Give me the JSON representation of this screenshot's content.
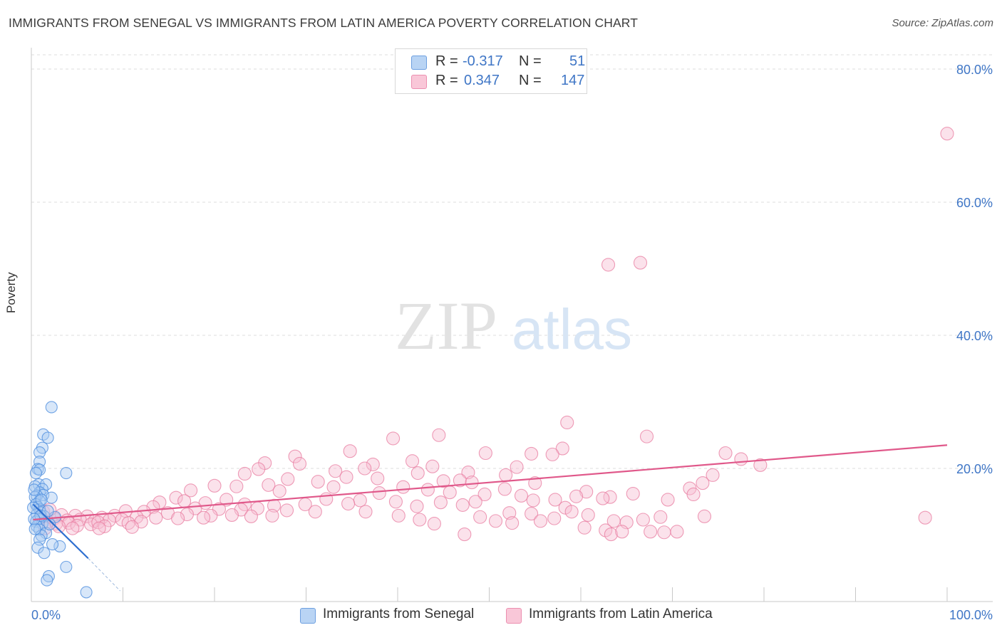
{
  "title": "IMMIGRANTS FROM SENEGAL VS IMMIGRANTS FROM LATIN AMERICA POVERTY CORRELATION CHART",
  "source": "Source: ZipAtlas.com",
  "watermark": {
    "zip": "ZIP",
    "atlas": "atlas"
  },
  "legend": {
    "r_label": "R =",
    "n_label": "N =",
    "rows": [
      {
        "r": "-0.317",
        "n": "51"
      },
      {
        "r": "0.347",
        "n": "147"
      }
    ]
  },
  "bottom_legend": [
    "Immigrants from Senegal",
    "Immigrants from Latin America"
  ],
  "colors": {
    "senegal_fill": "#a9c9f2",
    "senegal_stroke": "#4f8fde",
    "senegal_line": "#2e6fd0",
    "latam_fill": "#f7bfd2",
    "latam_stroke": "#e87ca0",
    "latam_line": "#e0588a",
    "tick_text": "#3f76c6",
    "grid": "#dcdcdc"
  },
  "chart_data": {
    "type": "scatter",
    "title": "IMMIGRANTS FROM SENEGAL VS IMMIGRANTS FROM LATIN AMERICA POVERTY CORRELATION CHART",
    "xlabel": "",
    "ylabel": "Poverty",
    "xlim": [
      0,
      105
    ],
    "ylim": [
      0,
      82
    ],
    "x_tick_labels": [
      {
        "v": 0,
        "t": "0.0%"
      },
      {
        "v": 100,
        "t": "100.0%"
      }
    ],
    "y_tick_labels": [
      {
        "v": 20,
        "t": "20.0%"
      },
      {
        "v": 40,
        "t": "40.0%"
      },
      {
        "v": 60,
        "t": "60.0%"
      },
      {
        "v": 80,
        "t": "80.0%"
      }
    ],
    "x_minor_ticks": [
      0,
      10,
      20,
      30,
      40,
      50,
      60,
      70,
      80,
      90,
      100
    ],
    "grid": true,
    "legend_position": "top-center",
    "series": [
      {
        "name": "Immigrants from Senegal",
        "r": -0.317,
        "n": 51,
        "trend": {
          "x0": 0.2,
          "y0": 14.6,
          "x1": 6.2,
          "y1": 6.5,
          "dash_to_x": 9.7,
          "dash_to_y": 1.6
        },
        "points": [
          [
            2.2,
            29.2
          ],
          [
            1.3,
            25.1
          ],
          [
            1.8,
            24.6
          ],
          [
            1.2,
            23.1
          ],
          [
            0.9,
            22.4
          ],
          [
            0.9,
            21.0
          ],
          [
            0.7,
            19.9
          ],
          [
            0.9,
            19.8
          ],
          [
            0.5,
            19.3
          ],
          [
            3.8,
            19.3
          ],
          [
            0.8,
            17.6
          ],
          [
            1.6,
            17.6
          ],
          [
            0.4,
            17.3
          ],
          [
            1.2,
            16.9
          ],
          [
            0.9,
            16.4
          ],
          [
            1.3,
            16.0
          ],
          [
            0.6,
            15.9
          ],
          [
            0.4,
            15.7
          ],
          [
            2.2,
            15.6
          ],
          [
            0.9,
            15.1
          ],
          [
            0.5,
            14.6
          ],
          [
            0.7,
            14.2
          ],
          [
            0.9,
            13.9
          ],
          [
            1.0,
            13.4
          ],
          [
            0.6,
            13.1
          ],
          [
            1.4,
            12.8
          ],
          [
            2.6,
            12.7
          ],
          [
            0.8,
            12.4
          ],
          [
            0.5,
            12.0
          ],
          [
            1.2,
            11.7
          ],
          [
            0.6,
            11.3
          ],
          [
            0.9,
            10.8
          ],
          [
            1.6,
            10.3
          ],
          [
            1.1,
            9.9
          ],
          [
            0.9,
            9.3
          ],
          [
            0.7,
            8.1
          ],
          [
            3.1,
            8.3
          ],
          [
            2.3,
            8.6
          ],
          [
            1.4,
            7.3
          ],
          [
            3.8,
            5.2
          ],
          [
            1.9,
            3.8
          ],
          [
            1.7,
            3.2
          ],
          [
            6.0,
            1.4
          ],
          [
            0.3,
            16.8
          ],
          [
            0.2,
            14.1
          ],
          [
            1.0,
            12.9
          ],
          [
            0.4,
            10.9
          ],
          [
            1.8,
            13.6
          ],
          [
            0.3,
            12.4
          ],
          [
            2.0,
            11.6
          ],
          [
            1.1,
            15.3
          ]
        ]
      },
      {
        "name": "Immigrants from Latin America",
        "r": 0.347,
        "n": 147,
        "trend": {
          "x0": 0.2,
          "y0": 12.3,
          "x1": 100,
          "y1": 23.5
        },
        "points": [
          [
            100,
            70.3
          ],
          [
            63.0,
            50.6
          ],
          [
            66.5,
            50.9
          ],
          [
            58.5,
            26.9
          ],
          [
            44.5,
            25.0
          ],
          [
            67.2,
            24.8
          ],
          [
            39.5,
            24.5
          ],
          [
            58.0,
            23.0
          ],
          [
            75.8,
            22.3
          ],
          [
            34.8,
            22.6
          ],
          [
            54.6,
            22.2
          ],
          [
            49.6,
            22.3
          ],
          [
            56.9,
            22.1
          ],
          [
            77.5,
            21.4
          ],
          [
            28.8,
            21.8
          ],
          [
            41.6,
            21.1
          ],
          [
            37.3,
            20.6
          ],
          [
            79.6,
            20.5
          ],
          [
            25.5,
            20.8
          ],
          [
            43.8,
            20.3
          ],
          [
            53.0,
            20.2
          ],
          [
            29.3,
            20.7
          ],
          [
            24.8,
            19.9
          ],
          [
            36.4,
            20.0
          ],
          [
            33.2,
            19.6
          ],
          [
            42.2,
            19.3
          ],
          [
            47.7,
            19.4
          ],
          [
            51.8,
            19.0
          ],
          [
            23.3,
            19.2
          ],
          [
            74.4,
            19.0
          ],
          [
            34.4,
            18.7
          ],
          [
            28.0,
            18.4
          ],
          [
            37.8,
            18.5
          ],
          [
            45.0,
            18.1
          ],
          [
            46.8,
            18.2
          ],
          [
            31.3,
            18.0
          ],
          [
            48.1,
            17.9
          ],
          [
            55.0,
            17.8
          ],
          [
            73.3,
            17.8
          ],
          [
            20.0,
            17.4
          ],
          [
            22.4,
            17.3
          ],
          [
            25.9,
            17.5
          ],
          [
            33.0,
            17.2
          ],
          [
            40.6,
            17.2
          ],
          [
            43.3,
            16.8
          ],
          [
            51.7,
            16.9
          ],
          [
            60.6,
            16.5
          ],
          [
            71.9,
            17.0
          ],
          [
            17.4,
            16.7
          ],
          [
            27.1,
            16.6
          ],
          [
            38.0,
            16.3
          ],
          [
            45.7,
            16.4
          ],
          [
            49.5,
            16.1
          ],
          [
            53.5,
            15.9
          ],
          [
            59.5,
            15.8
          ],
          [
            63.2,
            15.7
          ],
          [
            65.7,
            16.2
          ],
          [
            72.3,
            16.1
          ],
          [
            15.8,
            15.6
          ],
          [
            21.3,
            15.3
          ],
          [
            32.2,
            15.4
          ],
          [
            35.9,
            15.2
          ],
          [
            39.8,
            15.0
          ],
          [
            44.7,
            14.9
          ],
          [
            48.5,
            15.0
          ],
          [
            54.8,
            15.2
          ],
          [
            57.2,
            15.3
          ],
          [
            62.4,
            15.5
          ],
          [
            69.5,
            15.3
          ],
          [
            14.0,
            14.9
          ],
          [
            16.7,
            15.1
          ],
          [
            19.0,
            14.8
          ],
          [
            23.3,
            14.6
          ],
          [
            26.5,
            14.4
          ],
          [
            29.9,
            14.6
          ],
          [
            34.6,
            14.7
          ],
          [
            42.1,
            14.3
          ],
          [
            47.1,
            14.5
          ],
          [
            58.3,
            14.1
          ],
          [
            13.3,
            14.2
          ],
          [
            17.9,
            14.0
          ],
          [
            20.5,
            13.9
          ],
          [
            22.9,
            13.8
          ],
          [
            24.7,
            14.0
          ],
          [
            27.9,
            13.7
          ],
          [
            31.0,
            13.5
          ],
          [
            36.5,
            13.5
          ],
          [
            52.2,
            13.3
          ],
          [
            54.6,
            13.2
          ],
          [
            10.3,
            13.6
          ],
          [
            12.3,
            13.5
          ],
          [
            14.9,
            13.3
          ],
          [
            17.0,
            13.1
          ],
          [
            19.6,
            12.9
          ],
          [
            21.9,
            13.0
          ],
          [
            24.0,
            12.8
          ],
          [
            26.3,
            12.9
          ],
          [
            9.1,
            12.9
          ],
          [
            11.5,
            12.7
          ],
          [
            13.6,
            12.6
          ],
          [
            16.0,
            12.5
          ],
          [
            18.8,
            12.6
          ],
          [
            3.3,
            13.0
          ],
          [
            4.8,
            12.9
          ],
          [
            6.1,
            12.8
          ],
          [
            7.7,
            12.6
          ],
          [
            8.5,
            12.2
          ],
          [
            9.9,
            12.3
          ],
          [
            2.5,
            12.5
          ],
          [
            3.9,
            12.2
          ],
          [
            5.3,
            12.3
          ],
          [
            6.9,
            12.1
          ],
          [
            1.8,
            12.0
          ],
          [
            2.7,
            11.7
          ],
          [
            4.1,
            11.8
          ],
          [
            5.0,
            11.4
          ],
          [
            6.5,
            11.6
          ],
          [
            7.3,
            11.9
          ],
          [
            8.0,
            11.3
          ],
          [
            10.6,
            11.8
          ],
          [
            12.0,
            12.0
          ],
          [
            1.3,
            13.5
          ],
          [
            2.0,
            13.8
          ],
          [
            1.5,
            11.0
          ],
          [
            3.0,
            11.3
          ],
          [
            4.5,
            11.0
          ],
          [
            7.4,
            11.0
          ],
          [
            11.0,
            11.2
          ],
          [
            49.0,
            12.7
          ],
          [
            50.7,
            12.1
          ],
          [
            52.5,
            11.8
          ],
          [
            57.1,
            12.5
          ],
          [
            59.0,
            13.5
          ],
          [
            60.8,
            13.0
          ],
          [
            63.6,
            12.1
          ],
          [
            65.0,
            11.9
          ],
          [
            66.8,
            12.3
          ],
          [
            68.7,
            12.7
          ],
          [
            40.1,
            12.9
          ],
          [
            42.4,
            12.3
          ],
          [
            44.0,
            11.7
          ],
          [
            55.6,
            12.1
          ],
          [
            60.4,
            11.1
          ],
          [
            62.7,
            10.7
          ],
          [
            63.3,
            10.1
          ],
          [
            64.5,
            10.5
          ],
          [
            67.6,
            10.5
          ],
          [
            69.1,
            10.4
          ],
          [
            70.5,
            10.5
          ],
          [
            47.3,
            10.1
          ],
          [
            73.5,
            12.8
          ],
          [
            97.6,
            12.6
          ]
        ]
      }
    ]
  }
}
